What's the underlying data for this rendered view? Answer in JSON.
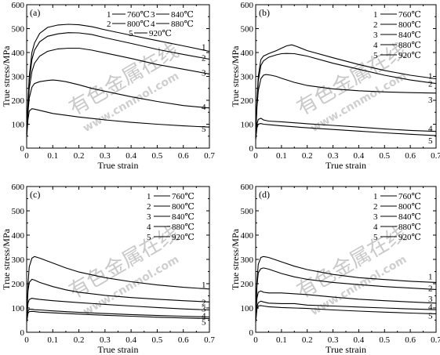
{
  "figure": {
    "watermark": "有色金属在线",
    "watermark_url": "www.cnnmol.com"
  },
  "chart_data": [
    {
      "type": "line",
      "panel": "(a)",
      "xlabel": "True strain",
      "ylabel": "True stress/MPa",
      "xlim": [
        0,
        0.7
      ],
      "ylim": [
        0,
        600
      ],
      "xticks": [
        "0",
        "0.1",
        "0.2",
        "0.3",
        "0.4",
        "0.5",
        "0.6",
        "0.7"
      ],
      "yticks": [
        "0",
        "100",
        "200",
        "300",
        "400",
        "500",
        "600"
      ],
      "legend_layout": "two-column",
      "legend_position": "top-right",
      "series": [
        {
          "name": "760℃",
          "label": "1",
          "x": [
            0,
            0.005,
            0.01,
            0.02,
            0.03,
            0.05,
            0.08,
            0.12,
            0.16,
            0.2,
            0.25,
            0.3,
            0.4,
            0.5,
            0.6,
            0.7
          ],
          "y": [
            60,
            200,
            300,
            400,
            440,
            480,
            505,
            515,
            518,
            516,
            508,
            495,
            472,
            450,
            428,
            405
          ]
        },
        {
          "name": "800℃",
          "label": "2",
          "x": [
            0,
            0.005,
            0.01,
            0.02,
            0.03,
            0.05,
            0.08,
            0.12,
            0.16,
            0.2,
            0.25,
            0.3,
            0.4,
            0.5,
            0.6,
            0.7
          ],
          "y": [
            60,
            190,
            280,
            370,
            410,
            445,
            468,
            478,
            483,
            482,
            475,
            462,
            438,
            413,
            392,
            372
          ]
        },
        {
          "name": "840℃",
          "label": "3",
          "x": [
            0,
            0.005,
            0.01,
            0.02,
            0.03,
            0.05,
            0.08,
            0.12,
            0.16,
            0.2,
            0.25,
            0.3,
            0.4,
            0.5,
            0.6,
            0.7
          ],
          "y": [
            55,
            170,
            250,
            320,
            355,
            385,
            405,
            415,
            418,
            418,
            410,
            398,
            375,
            350,
            330,
            310
          ]
        },
        {
          "name": "880℃",
          "label": "4",
          "x": [
            0,
            0.005,
            0.01,
            0.02,
            0.03,
            0.05,
            0.08,
            0.1,
            0.12,
            0.15,
            0.2,
            0.25,
            0.3,
            0.4,
            0.5,
            0.6,
            0.7
          ],
          "y": [
            50,
            150,
            210,
            255,
            270,
            278,
            283,
            285,
            283,
            278,
            265,
            250,
            238,
            215,
            195,
            178,
            168
          ]
        },
        {
          "name": "920℃",
          "label": "5",
          "x": [
            0,
            0.005,
            0.01,
            0.02,
            0.03,
            0.05,
            0.1,
            0.2,
            0.3,
            0.4,
            0.5,
            0.6,
            0.7
          ],
          "y": [
            45,
            120,
            155,
            165,
            163,
            158,
            145,
            130,
            118,
            108,
            100,
            93,
            88
          ]
        }
      ]
    },
    {
      "type": "line",
      "panel": "(b)",
      "xlabel": "True strain",
      "ylabel": "True stress/MPa",
      "xlim": [
        0,
        0.7
      ],
      "ylim": [
        0,
        600
      ],
      "xticks": [
        "0",
        "0.1",
        "0.2",
        "0.3",
        "0.4",
        "0.5",
        "0.6",
        "0.7"
      ],
      "yticks": [
        "0",
        "100",
        "200",
        "300",
        "400",
        "500",
        "600"
      ],
      "legend_layout": "one-column",
      "legend_position": "top-right",
      "series": [
        {
          "name": "760℃",
          "label": "1",
          "x": [
            0,
            0.005,
            0.01,
            0.02,
            0.03,
            0.05,
            0.08,
            0.1,
            0.12,
            0.14,
            0.16,
            0.2,
            0.3,
            0.4,
            0.5,
            0.6,
            0.7
          ],
          "y": [
            50,
            200,
            300,
            370,
            385,
            395,
            408,
            418,
            428,
            432,
            425,
            408,
            378,
            350,
            325,
            305,
            290
          ]
        },
        {
          "name": "800℃",
          "label": "2",
          "x": [
            0,
            0.005,
            0.01,
            0.02,
            0.03,
            0.05,
            0.08,
            0.1,
            0.12,
            0.15,
            0.2,
            0.3,
            0.4,
            0.5,
            0.6,
            0.7
          ],
          "y": [
            50,
            190,
            280,
            345,
            365,
            380,
            390,
            395,
            396,
            395,
            385,
            355,
            330,
            305,
            285,
            270
          ]
        },
        {
          "name": "840℃",
          "label": "3",
          "x": [
            0,
            0.005,
            0.01,
            0.02,
            0.03,
            0.04,
            0.06,
            0.08,
            0.1,
            0.15,
            0.2,
            0.3,
            0.4,
            0.5,
            0.6,
            0.7
          ],
          "y": [
            45,
            170,
            240,
            290,
            305,
            308,
            305,
            300,
            292,
            275,
            262,
            248,
            240,
            235,
            232,
            230
          ]
        },
        {
          "name": "880℃",
          "label": "4",
          "x": [
            0,
            0.005,
            0.01,
            0.02,
            0.03,
            0.05,
            0.1,
            0.2,
            0.3,
            0.4,
            0.5,
            0.6,
            0.7
          ],
          "y": [
            40,
            100,
            120,
            125,
            118,
            113,
            110,
            102,
            95,
            88,
            80,
            74,
            70
          ]
        },
        {
          "name": "920℃",
          "label": "5",
          "x": [
            0,
            0.005,
            0.01,
            0.02,
            0.03,
            0.05,
            0.1,
            0.2,
            0.3,
            0.4,
            0.5,
            0.6,
            0.7
          ],
          "y": [
            35,
            85,
            100,
            103,
            100,
            98,
            93,
            85,
            78,
            71,
            64,
            58,
            52
          ]
        }
      ]
    },
    {
      "type": "line",
      "panel": "(c)",
      "xlabel": "True strain",
      "ylabel": "True stress/MPa",
      "xlim": [
        0,
        0.7
      ],
      "ylim": [
        0,
        600
      ],
      "xticks": [
        "0",
        "0.1",
        "0.2",
        "0.3",
        "0.4",
        "0.5",
        "0.6",
        "0.7"
      ],
      "yticks": [
        "0",
        "100",
        "200",
        "300",
        "400",
        "500",
        "600"
      ],
      "legend_layout": "one-column",
      "legend_position": "top-right",
      "series": [
        {
          "name": "760℃",
          "label": "1",
          "x": [
            0,
            0.005,
            0.01,
            0.02,
            0.03,
            0.05,
            0.1,
            0.15,
            0.2,
            0.3,
            0.4,
            0.5,
            0.6,
            0.7
          ],
          "y": [
            60,
            200,
            270,
            305,
            312,
            305,
            285,
            265,
            248,
            225,
            208,
            195,
            185,
            178
          ]
        },
        {
          "name": "800℃",
          "label": "2",
          "x": [
            0,
            0.005,
            0.01,
            0.02,
            0.03,
            0.05,
            0.1,
            0.15,
            0.2,
            0.3,
            0.4,
            0.5,
            0.6,
            0.7
          ],
          "y": [
            55,
            170,
            205,
            218,
            215,
            205,
            188,
            175,
            165,
            152,
            143,
            136,
            130,
            125
          ]
        },
        {
          "name": "840℃",
          "label": "3",
          "x": [
            0,
            0.005,
            0.01,
            0.02,
            0.03,
            0.05,
            0.1,
            0.2,
            0.3,
            0.4,
            0.5,
            0.6,
            0.7
          ],
          "y": [
            50,
            120,
            135,
            140,
            138,
            135,
            130,
            122,
            115,
            108,
            102,
            96,
            92
          ]
        },
        {
          "name": "880℃",
          "label": "4",
          "x": [
            0,
            0.005,
            0.01,
            0.02,
            0.03,
            0.05,
            0.1,
            0.2,
            0.3,
            0.4,
            0.5,
            0.6,
            0.7
          ],
          "y": [
            45,
            88,
            95,
            95,
            93,
            92,
            88,
            82,
            77,
            73,
            69,
            66,
            63
          ]
        },
        {
          "name": "920℃",
          "label": "5",
          "x": [
            0,
            0.005,
            0.01,
            0.02,
            0.03,
            0.05,
            0.1,
            0.2,
            0.3,
            0.4,
            0.5,
            0.6,
            0.7
          ],
          "y": [
            40,
            78,
            85,
            86,
            85,
            83,
            80,
            75,
            70,
            66,
            62,
            59,
            56
          ]
        }
      ]
    },
    {
      "type": "line",
      "panel": "(d)",
      "xlabel": "True strain",
      "ylabel": "True stress/MPa",
      "xlim": [
        0,
        0.7
      ],
      "ylim": [
        0,
        600
      ],
      "xticks": [
        "0",
        "0.1",
        "0.2",
        "0.3",
        "0.4",
        "0.5",
        "0.6",
        "0.7"
      ],
      "yticks": [
        "0",
        "100",
        "200",
        "300",
        "400",
        "500",
        "600"
      ],
      "legend_layout": "one-column",
      "legend_position": "top-right",
      "series": [
        {
          "name": "760℃",
          "label": "1",
          "x": [
            0,
            0.005,
            0.01,
            0.02,
            0.03,
            0.05,
            0.1,
            0.15,
            0.2,
            0.3,
            0.4,
            0.5,
            0.6,
            0.7
          ],
          "y": [
            60,
            210,
            280,
            308,
            312,
            308,
            290,
            272,
            258,
            238,
            225,
            217,
            210,
            205
          ]
        },
        {
          "name": "800℃",
          "label": "2",
          "x": [
            0,
            0.005,
            0.01,
            0.02,
            0.03,
            0.05,
            0.1,
            0.15,
            0.2,
            0.3,
            0.4,
            0.5,
            0.6,
            0.7
          ],
          "y": [
            55,
            190,
            245,
            262,
            265,
            260,
            242,
            228,
            218,
            205,
            196,
            188,
            182,
            176
          ]
        },
        {
          "name": "840℃",
          "label": "3",
          "x": [
            0,
            0.005,
            0.01,
            0.02,
            0.03,
            0.05,
            0.1,
            0.2,
            0.3,
            0.4,
            0.5,
            0.6,
            0.7
          ],
          "y": [
            50,
            140,
            165,
            170,
            165,
            162,
            162,
            155,
            145,
            136,
            130,
            125,
            120
          ]
        },
        {
          "name": "880℃",
          "label": "4",
          "x": [
            0,
            0.005,
            0.01,
            0.02,
            0.03,
            0.05,
            0.1,
            0.15,
            0.2,
            0.3,
            0.4,
            0.5,
            0.6,
            0.7
          ],
          "y": [
            45,
            105,
            122,
            128,
            125,
            120,
            118,
            118,
            112,
            108,
            104,
            100,
            96,
            93
          ]
        },
        {
          "name": "920℃",
          "label": "5",
          "x": [
            0,
            0.005,
            0.01,
            0.02,
            0.03,
            0.05,
            0.1,
            0.2,
            0.3,
            0.4,
            0.5,
            0.6,
            0.7
          ],
          "y": [
            40,
            95,
            108,
            110,
            108,
            105,
            102,
            98,
            92,
            87,
            83,
            79,
            76
          ]
        }
      ]
    }
  ]
}
